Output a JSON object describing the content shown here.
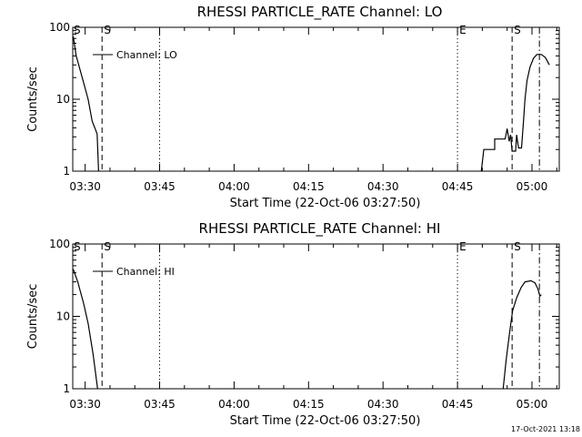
{
  "chart_data": [
    {
      "type": "line",
      "title": "RHESSI PARTICLE_RATE Channel: LO",
      "xlabel": "Start Time (22-Oct-06 03:27:50)",
      "ylabel": "Counts/sec",
      "y_scale": "log",
      "ylim": [
        1,
        100
      ],
      "y_ticks": [
        "1",
        "10",
        "100"
      ],
      "x_ticks": [
        "03:30",
        "03:45",
        "04:00",
        "04:15",
        "04:30",
        "04:45",
        "05:00"
      ],
      "xlim_minutes": [
        -2.5,
        95.5
      ],
      "legend": {
        "label": "Channel: LO",
        "placement": "top-left"
      },
      "vlines": [
        {
          "t": 3.4,
          "style": "dashed",
          "label": "S"
        },
        {
          "t": 15,
          "style": "dotted",
          "label": ""
        },
        {
          "t": 75,
          "style": "dotted",
          "label": "E"
        },
        {
          "t": 86,
          "style": "dashed",
          "label": "S"
        },
        {
          "t": 91.5,
          "style": "dashdot",
          "label": ""
        }
      ],
      "series": [
        {
          "name": "Channel: LO",
          "segments": [
            [
              [
                -2.4,
                75
              ],
              [
                -1.8,
                40
              ],
              [
                -0.6,
                20
              ],
              [
                0.6,
                10
              ],
              [
                1.4,
                5
              ],
              [
                2.4,
                3.3
              ],
              [
                2.7,
                1
              ]
            ],
            [
              [
                79.8,
                1
              ],
              [
                80.3,
                2
              ],
              [
                82.5,
                2
              ],
              [
                82.5,
                2.8
              ],
              [
                84.6,
                2.8
              ],
              [
                85.0,
                3.9
              ],
              [
                85.4,
                2.6
              ],
              [
                85.7,
                3.2
              ],
              [
                86.0,
                1.9
              ],
              [
                86.7,
                1.9
              ],
              [
                86.9,
                3.2
              ],
              [
                87.3,
                2.1
              ],
              [
                87.9,
                2.1
              ],
              [
                88.3,
                5
              ],
              [
                88.6,
                10
              ],
              [
                89.0,
                18
              ],
              [
                89.6,
                28
              ],
              [
                90.3,
                37
              ],
              [
                91.0,
                42
              ],
              [
                91.9,
                42
              ],
              [
                92.7,
                38
              ],
              [
                93.5,
                30
              ]
            ]
          ]
        }
      ]
    },
    {
      "type": "line",
      "title": "RHESSI PARTICLE_RATE Channel: HI",
      "xlabel": "Start Time (22-Oct-06 03:27:50)",
      "ylabel": "Counts/sec",
      "y_scale": "log",
      "ylim": [
        1,
        100
      ],
      "y_ticks": [
        "1",
        "10",
        "100"
      ],
      "x_ticks": [
        "03:30",
        "03:45",
        "04:00",
        "04:15",
        "04:30",
        "04:45",
        "05:00"
      ],
      "xlim_minutes": [
        -2.5,
        95.5
      ],
      "legend": {
        "label": "Channel: HI",
        "placement": "top-left"
      },
      "vlines": [
        {
          "t": 3.4,
          "style": "dashed",
          "label": "S"
        },
        {
          "t": 15,
          "style": "dotted",
          "label": ""
        },
        {
          "t": 75,
          "style": "dotted",
          "label": "E"
        },
        {
          "t": 86,
          "style": "dashed",
          "label": "S"
        },
        {
          "t": 91.5,
          "style": "dashdot",
          "label": ""
        }
      ],
      "series": [
        {
          "name": "Channel: HI",
          "segments": [
            [
              [
                -2.4,
                45
              ],
              [
                -1.5,
                30
              ],
              [
                -0.3,
                15
              ],
              [
                0.6,
                8
              ],
              [
                1.6,
                3
              ],
              [
                2.5,
                1
              ]
            ],
            [
              [
                84.2,
                1
              ],
              [
                84.8,
                2.5
              ],
              [
                85.5,
                6
              ],
              [
                86.1,
                12
              ],
              [
                86.9,
                18
              ],
              [
                87.8,
                25
              ],
              [
                88.6,
                30
              ],
              [
                89.8,
                31
              ],
              [
                90.6,
                29
              ],
              [
                91.2,
                24
              ],
              [
                91.6,
                19
              ],
              [
                91.9,
                20
              ]
            ]
          ]
        }
      ]
    }
  ],
  "timestamp": "17-Oct-2021 13:18"
}
